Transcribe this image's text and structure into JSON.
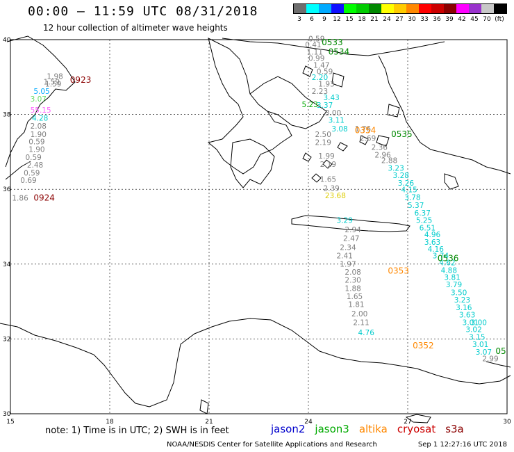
{
  "title": "00:00 – 11:59 UTC 08/31/2018",
  "subtitle": "12 hour collection of altimeter wave heights",
  "scale": {
    "colors": [
      "#6e6e6e",
      "#00ffff",
      "#00aaff",
      "#1010ff",
      "#00ff00",
      "#00cc00",
      "#008800",
      "#ffff00",
      "#ffcc00",
      "#ff8800",
      "#ff0000",
      "#cc0000",
      "#8b0000",
      "#ff00ff",
      "#9933cc",
      "#c8c8c8",
      "#000000"
    ],
    "labels": [
      "3",
      "6",
      "9",
      "12",
      "15",
      "18",
      "21",
      "24",
      "27",
      "30",
      "33",
      "36",
      "39",
      "42",
      "45",
      "70",
      "(ft)"
    ]
  },
  "axes": {
    "lon_ticks": [
      "15",
      "18",
      "21",
      "24",
      "27",
      "30"
    ],
    "lat_ticks": [
      "40",
      "38",
      "36",
      "34",
      "32",
      "30"
    ]
  },
  "map_data": {
    "extent": {
      "lon": [
        15,
        30
      ],
      "lat": [
        30,
        40
      ]
    },
    "missions": {
      "jason2": "#0000cc",
      "jason3": "#008800",
      "altika": "#ff8800",
      "cryosat": "#cc0000",
      "s3a": "#8b0000"
    },
    "track_times": [
      {
        "text": "0923",
        "lon": 16.8,
        "lat": 38.85,
        "mission": "s3a"
      },
      {
        "text": "0924",
        "lon": 15.7,
        "lat": 35.7,
        "mission": "s3a"
      },
      {
        "text": "0533",
        "lon": 24.4,
        "lat": 39.85,
        "mission": "jason3"
      },
      {
        "text": "0534",
        "lon": 24.6,
        "lat": 39.6,
        "mission": "jason3"
      },
      {
        "text": "0535",
        "lon": 26.5,
        "lat": 37.4,
        "mission": "jason3"
      },
      {
        "text": "0536",
        "lon": 27.9,
        "lat": 34.08,
        "mission": "jason3"
      },
      {
        "text": "05",
        "lon": 29.65,
        "lat": 31.6,
        "mission": "jason3"
      },
      {
        "text": "0354",
        "lon": 25.4,
        "lat": 37.5,
        "mission": "altika"
      },
      {
        "text": "0353",
        "lon": 26.4,
        "lat": 33.75,
        "mission": "altika"
      },
      {
        "text": "0352",
        "lon": 27.15,
        "lat": 31.75,
        "mission": "altika"
      }
    ],
    "swh_points": [
      {
        "v": "1.98",
        "lon": 16.1,
        "lat": 38.95,
        "c": "#808080"
      },
      {
        "v": "1.59",
        "lon": 16.0,
        "lat": 38.8,
        "c": "#808080"
      },
      {
        "v": "1.59",
        "lon": 16.05,
        "lat": 38.75,
        "c": "#808080"
      },
      {
        "v": "5.05",
        "lon": 15.7,
        "lat": 38.55,
        "c": "#00aaff"
      },
      {
        "v": "3.07",
        "lon": 15.6,
        "lat": 38.35,
        "c": "#66dd66"
      },
      {
        "v": "55.15",
        "lon": 15.6,
        "lat": 38.05,
        "c": "#ff66ff"
      },
      {
        "v": "4.28",
        "lon": 15.65,
        "lat": 37.83,
        "c": "#00cccc"
      },
      {
        "v": "2.08",
        "lon": 15.6,
        "lat": 37.62,
        "c": "#808080"
      },
      {
        "v": "1.90",
        "lon": 15.6,
        "lat": 37.4,
        "c": "#808080"
      },
      {
        "v": "0.59",
        "lon": 15.55,
        "lat": 37.2,
        "c": "#808080"
      },
      {
        "v": "1.90",
        "lon": 15.55,
        "lat": 37.0,
        "c": "#808080"
      },
      {
        "v": "0.59",
        "lon": 15.45,
        "lat": 36.78,
        "c": "#808080"
      },
      {
        "v": "2.48",
        "lon": 15.5,
        "lat": 36.58,
        "c": "#808080"
      },
      {
        "v": "0.59",
        "lon": 15.4,
        "lat": 36.37,
        "c": "#808080"
      },
      {
        "v": "0.69",
        "lon": 15.3,
        "lat": 36.17,
        "c": "#808080"
      },
      {
        "v": "1.86",
        "lon": 15.05,
        "lat": 35.7,
        "c": "#808080"
      },
      {
        "v": "0.59",
        "lon": 24.0,
        "lat": 39.95,
        "c": "#808080"
      },
      {
        "v": "0.41",
        "lon": 23.9,
        "lat": 39.8,
        "c": "#808080"
      },
      {
        "v": "1.11",
        "lon": 23.95,
        "lat": 39.6,
        "c": "#808080"
      },
      {
        "v": "0.99",
        "lon": 24.0,
        "lat": 39.43,
        "c": "#808080"
      },
      {
        "v": "1.47",
        "lon": 24.15,
        "lat": 39.25,
        "c": "#808080"
      },
      {
        "v": "0.59",
        "lon": 24.25,
        "lat": 39.08,
        "c": "#808080"
      },
      {
        "v": "2.20",
        "lon": 24.1,
        "lat": 38.92,
        "c": "#00cccc"
      },
      {
        "v": "1.93",
        "lon": 24.3,
        "lat": 38.75,
        "c": "#808080"
      },
      {
        "v": "2.23",
        "lon": 24.1,
        "lat": 38.55,
        "c": "#808080"
      },
      {
        "v": "3.43",
        "lon": 24.45,
        "lat": 38.38,
        "c": "#00cccc"
      },
      {
        "v": "5.23",
        "lon": 23.8,
        "lat": 38.2,
        "c": "#00aa00"
      },
      {
        "v": "3.37",
        "lon": 24.25,
        "lat": 38.18,
        "c": "#00cccc"
      },
      {
        "v": "3.00",
        "lon": 24.5,
        "lat": 37.97,
        "c": "#808080"
      },
      {
        "v": "3.11",
        "lon": 24.6,
        "lat": 37.78,
        "c": "#00cccc"
      },
      {
        "v": "1.76",
        "lon": 25.4,
        "lat": 37.55,
        "c": "#808080"
      },
      {
        "v": "3.08",
        "lon": 24.7,
        "lat": 37.55,
        "c": "#00cccc"
      },
      {
        "v": "2.50",
        "lon": 24.2,
        "lat": 37.4,
        "c": "#808080"
      },
      {
        "v": "2.69",
        "lon": 25.55,
        "lat": 37.3,
        "c": "#808080"
      },
      {
        "v": "2.19",
        "lon": 24.2,
        "lat": 37.18,
        "c": "#808080"
      },
      {
        "v": "2.36",
        "lon": 25.9,
        "lat": 37.05,
        "c": "#808080"
      },
      {
        "v": "2.96",
        "lon": 26.0,
        "lat": 36.85,
        "c": "#808080"
      },
      {
        "v": "1.99",
        "lon": 24.3,
        "lat": 36.82,
        "c": "#808080"
      },
      {
        "v": "2.88",
        "lon": 26.2,
        "lat": 36.7,
        "c": "#808080"
      },
      {
        "v": "2.19",
        "lon": 24.35,
        "lat": 36.6,
        "c": "#808080"
      },
      {
        "v": "3.23",
        "lon": 26.4,
        "lat": 36.5,
        "c": "#00cccc"
      },
      {
        "v": "1.65",
        "lon": 24.35,
        "lat": 36.2,
        "c": "#808080"
      },
      {
        "v": "3.28",
        "lon": 26.55,
        "lat": 36.3,
        "c": "#00cccc"
      },
      {
        "v": "2.39",
        "lon": 24.45,
        "lat": 35.96,
        "c": "#808080"
      },
      {
        "v": "3.26",
        "lon": 26.7,
        "lat": 36.1,
        "c": "#00cccc"
      },
      {
        "v": "23.68",
        "lon": 24.5,
        "lat": 35.76,
        "c": "#ddcc00"
      },
      {
        "v": "4.15",
        "lon": 26.8,
        "lat": 35.92,
        "c": "#00cccc"
      },
      {
        "v": "3.78",
        "lon": 26.9,
        "lat": 35.72,
        "c": "#00cccc"
      },
      {
        "v": "5.37",
        "lon": 27.0,
        "lat": 35.5,
        "c": "#00cccc"
      },
      {
        "v": "6.37",
        "lon": 27.2,
        "lat": 35.3,
        "c": "#00cccc"
      },
      {
        "v": "3.29",
        "lon": 24.85,
        "lat": 35.1,
        "c": "#00cccc"
      },
      {
        "v": "5.25",
        "lon": 27.25,
        "lat": 35.1,
        "c": "#00cccc"
      },
      {
        "v": "6.51",
        "lon": 27.35,
        "lat": 34.9,
        "c": "#00cccc"
      },
      {
        "v": "2.94",
        "lon": 25.1,
        "lat": 34.85,
        "c": "#808080"
      },
      {
        "v": "4.96",
        "lon": 27.5,
        "lat": 34.72,
        "c": "#00cccc"
      },
      {
        "v": "2.47",
        "lon": 25.05,
        "lat": 34.62,
        "c": "#808080"
      },
      {
        "v": "3.63",
        "lon": 27.5,
        "lat": 34.52,
        "c": "#00cccc"
      },
      {
        "v": "2.34",
        "lon": 24.95,
        "lat": 34.38,
        "c": "#808080"
      },
      {
        "v": "4.16",
        "lon": 27.6,
        "lat": 34.33,
        "c": "#00cccc"
      },
      {
        "v": "2.41",
        "lon": 24.85,
        "lat": 34.15,
        "c": "#808080"
      },
      {
        "v": "3.74",
        "lon": 27.75,
        "lat": 34.15,
        "c": "#00cccc"
      },
      {
        "v": "1.97",
        "lon": 24.95,
        "lat": 33.93,
        "c": "#808080"
      },
      {
        "v": "4.62",
        "lon": 27.95,
        "lat": 33.97,
        "c": "#00cccc"
      },
      {
        "v": "4.88",
        "lon": 28.0,
        "lat": 33.76,
        "c": "#00cccc"
      },
      {
        "v": "2.08",
        "lon": 25.1,
        "lat": 33.72,
        "c": "#808080"
      },
      {
        "v": "3.81",
        "lon": 28.1,
        "lat": 33.58,
        "c": "#00cccc"
      },
      {
        "v": "2.30",
        "lon": 25.1,
        "lat": 33.5,
        "c": "#808080"
      },
      {
        "v": "3.79",
        "lon": 28.15,
        "lat": 33.38,
        "c": "#00cccc"
      },
      {
        "v": "1.88",
        "lon": 25.1,
        "lat": 33.28,
        "c": "#808080"
      },
      {
        "v": "3.50",
        "lon": 28.3,
        "lat": 33.17,
        "c": "#00cccc"
      },
      {
        "v": "1.65",
        "lon": 25.15,
        "lat": 33.07,
        "c": "#808080"
      },
      {
        "v": "3.23",
        "lon": 28.4,
        "lat": 32.97,
        "c": "#00cccc"
      },
      {
        "v": "1.81",
        "lon": 25.2,
        "lat": 32.85,
        "c": "#808080"
      },
      {
        "v": "3.16",
        "lon": 28.45,
        "lat": 32.77,
        "c": "#00cccc"
      },
      {
        "v": "3.63",
        "lon": 28.55,
        "lat": 32.57,
        "c": "#00cccc"
      },
      {
        "v": "2.00",
        "lon": 25.3,
        "lat": 32.6,
        "c": "#808080"
      },
      {
        "v": "3.01",
        "lon": 28.65,
        "lat": 32.37,
        "c": "#00cccc"
      },
      {
        "v": "2.11",
        "lon": 25.35,
        "lat": 32.37,
        "c": "#808080"
      },
      {
        "v": "3.02",
        "lon": 28.75,
        "lat": 32.18,
        "c": "#00cccc"
      },
      {
        "v": "3.00",
        "lon": 28.9,
        "lat": 32.37,
        "c": "#00cccc"
      },
      {
        "v": "4.76",
        "lon": 25.5,
        "lat": 32.1,
        "c": "#00cccc"
      },
      {
        "v": "3.15",
        "lon": 28.85,
        "lat": 31.98,
        "c": "#00cccc"
      },
      {
        "v": "3.01",
        "lon": 28.95,
        "lat": 31.78,
        "c": "#00cccc"
      },
      {
        "v": "3.07",
        "lon": 29.05,
        "lat": 31.58,
        "c": "#00cccc"
      },
      {
        "v": "2.99",
        "lon": 29.25,
        "lat": 31.4,
        "c": "#808080"
      }
    ]
  },
  "note": "note:  1) Time is in UTC;  2) SWH is in feet",
  "mission_legend": [
    {
      "name": "jason2",
      "color": "#0000cc"
    },
    {
      "name": "jason3",
      "color": "#00aa00"
    },
    {
      "name": "altika",
      "color": "#ff8800"
    },
    {
      "name": "cryosat",
      "color": "#cc0000"
    },
    {
      "name": "s3a",
      "color": "#8b0000"
    }
  ],
  "footer": {
    "agency": "NOAA/NESDIS Center for Satellite Applications and Research",
    "timestamp": "Sep  1 12:27:16 UTC 2018"
  }
}
